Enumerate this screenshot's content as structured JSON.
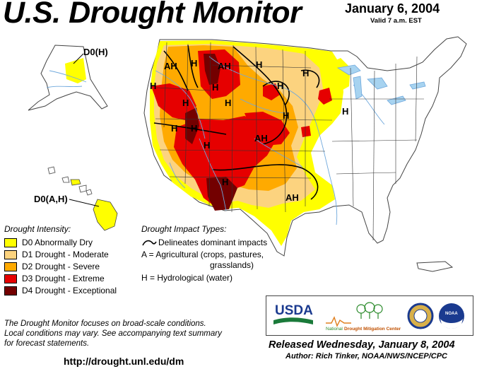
{
  "header": {
    "title": "U.S. Drought Monitor",
    "date": "January 6, 2004",
    "valid": "Valid 7 a.m. EST"
  },
  "map_labels": [
    {
      "text": "AH",
      "kind": "impact"
    },
    {
      "text": "H",
      "kind": "impact"
    },
    {
      "text": "AH",
      "kind": "impact"
    },
    {
      "text": "H",
      "kind": "impact"
    },
    {
      "text": "H",
      "kind": "impact"
    },
    {
      "text": "H",
      "kind": "impact"
    },
    {
      "text": "H",
      "kind": "impact"
    },
    {
      "text": "H",
      "kind": "impact"
    },
    {
      "text": "H",
      "kind": "impact"
    },
    {
      "text": "H",
      "kind": "impact"
    },
    {
      "text": "H",
      "kind": "impact"
    },
    {
      "text": "H",
      "kind": "impact"
    },
    {
      "text": "H",
      "kind": "impact"
    },
    {
      "text": "H",
      "kind": "impact"
    },
    {
      "text": "AH",
      "kind": "impact"
    },
    {
      "text": "H",
      "kind": "impact"
    },
    {
      "text": "AH",
      "kind": "impact"
    },
    {
      "text": "H",
      "kind": "impact"
    }
  ],
  "alaska_label": "D0(H)",
  "hawaii_label": "D0(A,H)",
  "legend": {
    "intensity_title": "Drought Intensity:",
    "items": [
      {
        "label": "D0 Abnormally Dry",
        "color": "#ffff00"
      },
      {
        "label": "D1 Drought - Moderate",
        "color": "#fcd37f"
      },
      {
        "label": "D2 Drought - Severe",
        "color": "#ffaa00"
      },
      {
        "label": "D3 Drought - Extreme",
        "color": "#e60000"
      },
      {
        "label": "D4 Drought - Exceptional",
        "color": "#730000"
      }
    ],
    "impact_title": "Drought Impact Types:",
    "impact_line": "Delineates dominant impacts",
    "impact_a_1": "A = Agricultural (crops, pastures,",
    "impact_a_2": "grasslands)",
    "impact_h": "H = Hydrological (water)"
  },
  "disclaimer": {
    "line1": "The Drought Monitor focuses on broad-scale conditions.",
    "line2": "Local conditions may vary.  See accompanying text summary",
    "line3": "for forecast statements."
  },
  "url": "http://drought.unl.edu/dm",
  "logos": {
    "usda": "USDA",
    "ndmc_prefix": "National",
    "ndmc_name": "Drought Mitigation Center",
    "noaa": "NOAA"
  },
  "released": "Released Wednesday, January 8, 2004",
  "author": "Author: Rich Tinker, NOAA/NWS/NCEP/CPC",
  "colors": {
    "d0": "#ffff00",
    "d1": "#fcd37f",
    "d2": "#ffaa00",
    "d3": "#e60000",
    "d4": "#730000",
    "river": "#6fa8dc",
    "water": "#a7d3f0"
  }
}
